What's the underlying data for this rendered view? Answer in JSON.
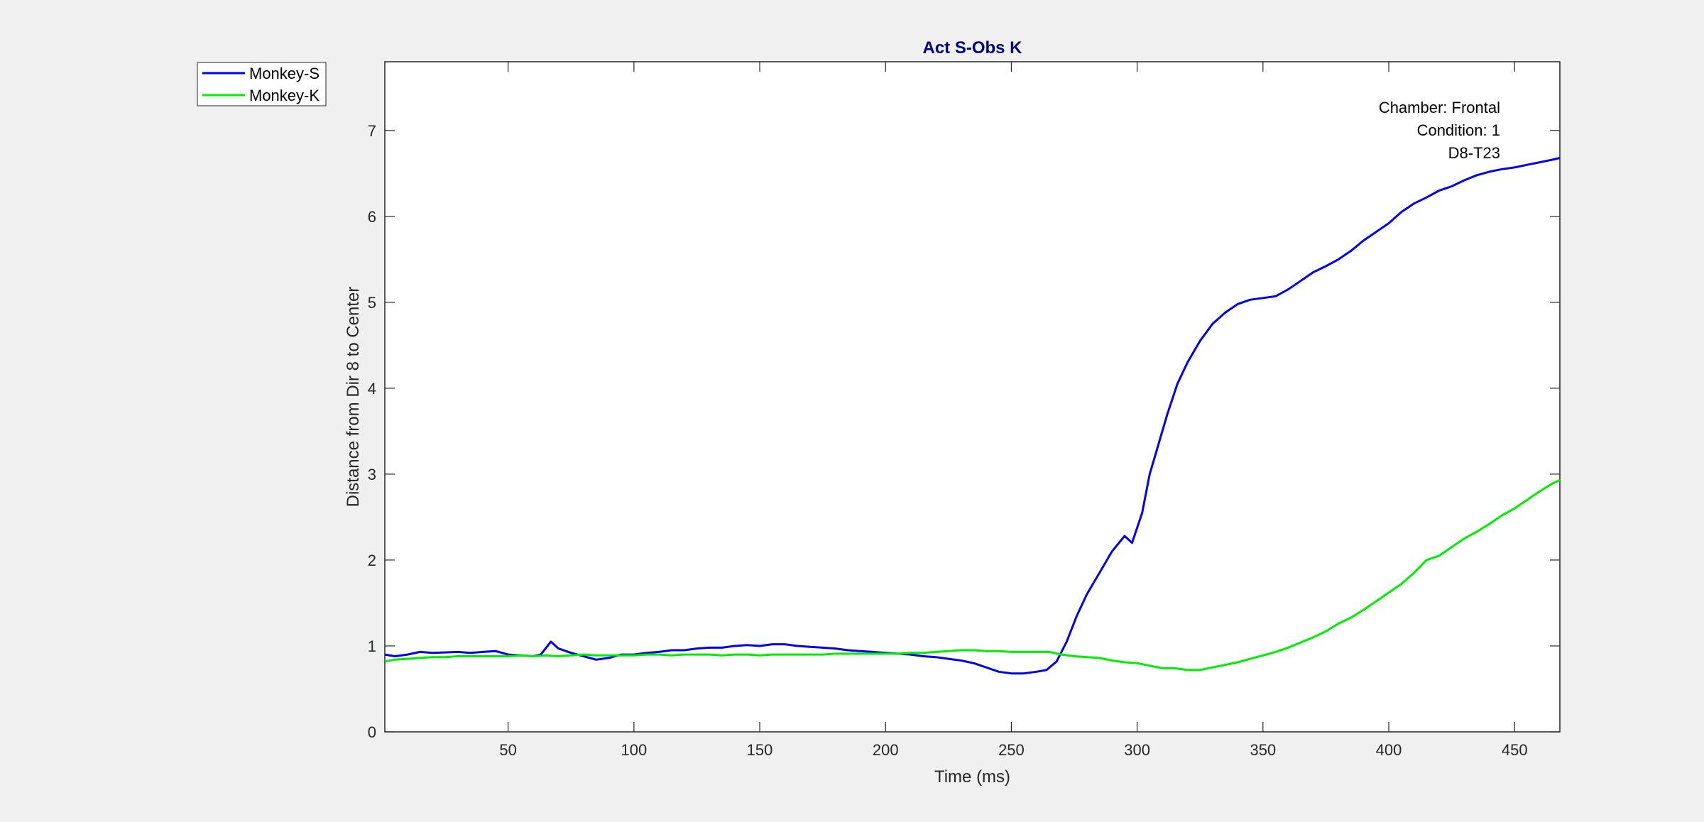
{
  "figure": {
    "background": "#f0f0f0"
  },
  "chart_data": {
    "type": "line",
    "title": "Act S-Obs K",
    "title_color": "#000080",
    "xlabel": "Time (ms)",
    "ylabel": "Distance from Dir 8 to Center",
    "xlim": [
      1,
      468
    ],
    "ylim": [
      0,
      7.8
    ],
    "xticks": [
      50,
      100,
      150,
      200,
      250,
      300,
      350,
      400,
      450
    ],
    "yticks": [
      0,
      1,
      2,
      3,
      4,
      5,
      6,
      7
    ],
    "grid": false,
    "legend_position": "outside-top-left",
    "annotations": [
      "Chamber: Frontal",
      "Condition: 1",
      "D8-T23"
    ],
    "series": [
      {
        "name": "Monkey-S",
        "color": "#0000ee",
        "points": [
          [
            1,
            0.9
          ],
          [
            5,
            0.88
          ],
          [
            10,
            0.9
          ],
          [
            15,
            0.93
          ],
          [
            20,
            0.92
          ],
          [
            30,
            0.93
          ],
          [
            35,
            0.92
          ],
          [
            40,
            0.93
          ],
          [
            45,
            0.94
          ],
          [
            50,
            0.9
          ],
          [
            55,
            0.89
          ],
          [
            60,
            0.88
          ],
          [
            63,
            0.9
          ],
          [
            67,
            1.05
          ],
          [
            70,
            0.97
          ],
          [
            75,
            0.92
          ],
          [
            80,
            0.88
          ],
          [
            85,
            0.84
          ],
          [
            90,
            0.86
          ],
          [
            95,
            0.9
          ],
          [
            100,
            0.9
          ],
          [
            105,
            0.92
          ],
          [
            110,
            0.93
          ],
          [
            115,
            0.95
          ],
          [
            120,
            0.95
          ],
          [
            125,
            0.97
          ],
          [
            130,
            0.98
          ],
          [
            135,
            0.98
          ],
          [
            140,
            1.0
          ],
          [
            145,
            1.01
          ],
          [
            150,
            1.0
          ],
          [
            155,
            1.02
          ],
          [
            160,
            1.02
          ],
          [
            165,
            1.0
          ],
          [
            170,
            0.99
          ],
          [
            175,
            0.98
          ],
          [
            180,
            0.97
          ],
          [
            185,
            0.95
          ],
          [
            190,
            0.94
          ],
          [
            195,
            0.93
          ],
          [
            200,
            0.92
          ],
          [
            205,
            0.91
          ],
          [
            210,
            0.9
          ],
          [
            215,
            0.88
          ],
          [
            220,
            0.87
          ],
          [
            225,
            0.85
          ],
          [
            230,
            0.83
          ],
          [
            235,
            0.8
          ],
          [
            240,
            0.75
          ],
          [
            245,
            0.7
          ],
          [
            250,
            0.68
          ],
          [
            255,
            0.68
          ],
          [
            260,
            0.7
          ],
          [
            264,
            0.72
          ],
          [
            268,
            0.82
          ],
          [
            272,
            1.05
          ],
          [
            276,
            1.35
          ],
          [
            280,
            1.6
          ],
          [
            285,
            1.85
          ],
          [
            290,
            2.1
          ],
          [
            295,
            2.28
          ],
          [
            298,
            2.2
          ],
          [
            302,
            2.55
          ],
          [
            305,
            3.0
          ],
          [
            308,
            3.3
          ],
          [
            312,
            3.7
          ],
          [
            316,
            4.05
          ],
          [
            320,
            4.3
          ],
          [
            325,
            4.55
          ],
          [
            330,
            4.75
          ],
          [
            335,
            4.88
          ],
          [
            340,
            4.98
          ],
          [
            345,
            5.03
          ],
          [
            350,
            5.05
          ],
          [
            355,
            5.07
          ],
          [
            360,
            5.15
          ],
          [
            365,
            5.25
          ],
          [
            370,
            5.35
          ],
          [
            375,
            5.42
          ],
          [
            380,
            5.5
          ],
          [
            385,
            5.6
          ],
          [
            390,
            5.72
          ],
          [
            395,
            5.82
          ],
          [
            400,
            5.92
          ],
          [
            405,
            6.05
          ],
          [
            410,
            6.15
          ],
          [
            415,
            6.22
          ],
          [
            420,
            6.3
          ],
          [
            425,
            6.35
          ],
          [
            430,
            6.42
          ],
          [
            435,
            6.48
          ],
          [
            440,
            6.52
          ],
          [
            445,
            6.55
          ],
          [
            450,
            6.57
          ],
          [
            455,
            6.6
          ],
          [
            460,
            6.63
          ],
          [
            465,
            6.66
          ],
          [
            468,
            6.68
          ]
        ]
      },
      {
        "name": "Monkey-K",
        "color": "#00ee00",
        "points": [
          [
            1,
            0.82
          ],
          [
            5,
            0.84
          ],
          [
            10,
            0.85
          ],
          [
            15,
            0.86
          ],
          [
            20,
            0.87
          ],
          [
            25,
            0.87
          ],
          [
            30,
            0.88
          ],
          [
            35,
            0.88
          ],
          [
            40,
            0.88
          ],
          [
            45,
            0.88
          ],
          [
            50,
            0.88
          ],
          [
            55,
            0.89
          ],
          [
            60,
            0.88
          ],
          [
            65,
            0.89
          ],
          [
            70,
            0.88
          ],
          [
            75,
            0.89
          ],
          [
            80,
            0.9
          ],
          [
            85,
            0.89
          ],
          [
            90,
            0.89
          ],
          [
            95,
            0.89
          ],
          [
            100,
            0.89
          ],
          [
            105,
            0.9
          ],
          [
            110,
            0.9
          ],
          [
            115,
            0.89
          ],
          [
            120,
            0.9
          ],
          [
            125,
            0.9
          ],
          [
            130,
            0.9
          ],
          [
            135,
            0.89
          ],
          [
            140,
            0.9
          ],
          [
            145,
            0.9
          ],
          [
            150,
            0.89
          ],
          [
            155,
            0.9
          ],
          [
            160,
            0.9
          ],
          [
            165,
            0.9
          ],
          [
            170,
            0.9
          ],
          [
            175,
            0.9
          ],
          [
            180,
            0.91
          ],
          [
            185,
            0.91
          ],
          [
            190,
            0.91
          ],
          [
            195,
            0.91
          ],
          [
            200,
            0.91
          ],
          [
            205,
            0.91
          ],
          [
            210,
            0.92
          ],
          [
            215,
            0.92
          ],
          [
            220,
            0.93
          ],
          [
            225,
            0.94
          ],
          [
            230,
            0.95
          ],
          [
            235,
            0.95
          ],
          [
            240,
            0.94
          ],
          [
            245,
            0.94
          ],
          [
            250,
            0.93
          ],
          [
            255,
            0.93
          ],
          [
            260,
            0.93
          ],
          [
            265,
            0.93
          ],
          [
            270,
            0.9
          ],
          [
            275,
            0.88
          ],
          [
            280,
            0.87
          ],
          [
            285,
            0.86
          ],
          [
            290,
            0.83
          ],
          [
            295,
            0.81
          ],
          [
            300,
            0.8
          ],
          [
            305,
            0.77
          ],
          [
            310,
            0.74
          ],
          [
            315,
            0.74
          ],
          [
            320,
            0.72
          ],
          [
            325,
            0.72
          ],
          [
            330,
            0.75
          ],
          [
            335,
            0.78
          ],
          [
            340,
            0.81
          ],
          [
            345,
            0.85
          ],
          [
            350,
            0.89
          ],
          [
            355,
            0.93
          ],
          [
            360,
            0.98
          ],
          [
            365,
            1.04
          ],
          [
            370,
            1.1
          ],
          [
            375,
            1.17
          ],
          [
            380,
            1.26
          ],
          [
            385,
            1.33
          ],
          [
            390,
            1.42
          ],
          [
            395,
            1.52
          ],
          [
            400,
            1.62
          ],
          [
            405,
            1.72
          ],
          [
            410,
            1.85
          ],
          [
            415,
            2.0
          ],
          [
            420,
            2.05
          ],
          [
            425,
            2.15
          ],
          [
            430,
            2.25
          ],
          [
            435,
            2.33
          ],
          [
            440,
            2.42
          ],
          [
            445,
            2.52
          ],
          [
            450,
            2.6
          ],
          [
            455,
            2.7
          ],
          [
            460,
            2.8
          ],
          [
            465,
            2.89
          ],
          [
            468,
            2.93
          ]
        ]
      }
    ]
  }
}
